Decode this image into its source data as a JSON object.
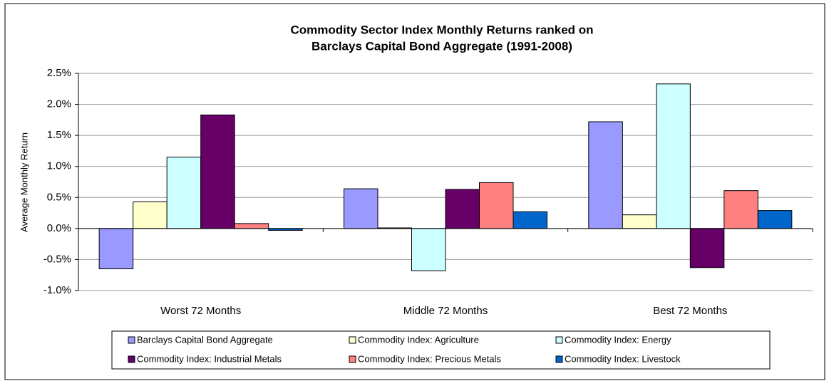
{
  "chart_data": {
    "type": "bar",
    "title": [
      "Commodity Sector Index Monthly Returns ranked on",
      "Barclays Capital Bond Aggregate (1991-2008)"
    ],
    "y_label": "Average Monthly Return",
    "categories": [
      "Worst 72 Months",
      "Middle 72 Months",
      "Best 72 Months"
    ],
    "series": [
      {
        "name": "Barclays Capital Bond Aggregate",
        "color": "#9999ff",
        "values": [
          -0.65,
          0.64,
          1.72
        ]
      },
      {
        "name": "Commodity Index: Agriculture",
        "color": "#ffffcc",
        "values": [
          0.43,
          0.01,
          0.22
        ]
      },
      {
        "name": "Commodity Index: Energy",
        "color": "#ccffff",
        "values": [
          1.15,
          -0.68,
          2.33
        ]
      },
      {
        "name": "Commodity Index: Industrial Metals",
        "color": "#660066",
        "values": [
          1.83,
          0.63,
          -0.63
        ]
      },
      {
        "name": "Commodity Index: Precious Metals",
        "color": "#ff8080",
        "values": [
          0.08,
          0.74,
          0.61
        ]
      },
      {
        "name": "Commodity Index: Livestock",
        "color": "#0066cc",
        "values": [
          -0.03,
          0.27,
          0.29
        ]
      }
    ],
    "ylim": [
      -1.0,
      2.5
    ],
    "yticks": [
      {
        "value": -1.0,
        "label": "-1.0%"
      },
      {
        "value": -0.5,
        "label": "-0.5%"
      },
      {
        "value": 0.0,
        "label": "0.0%"
      },
      {
        "value": 0.5,
        "label": "0.5%"
      },
      {
        "value": 1.0,
        "label": "1.0%"
      },
      {
        "value": 1.5,
        "label": "1.5%"
      },
      {
        "value": 2.0,
        "label": "2.0%"
      },
      {
        "value": 2.5,
        "label": "2.5%"
      }
    ],
    "grid": true,
    "legend": "bottom"
  }
}
